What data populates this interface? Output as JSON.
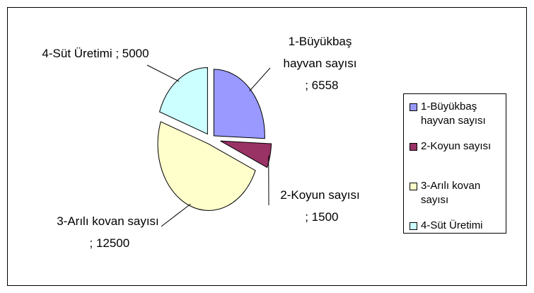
{
  "chart_data": {
    "type": "pie",
    "categories": [
      "1-Büyükbaş hayvan sayısı",
      "2-Koyun sayısı",
      "3-Arılı kovan sayısı",
      "4-Süt Üretimi"
    ],
    "values": [
      6558,
      1500,
      12500,
      5000
    ],
    "colors": [
      "#9999ff",
      "#993366",
      "#ffffcc",
      "#ccffff"
    ],
    "data_label_separator": " ; ",
    "legend": "right"
  }
}
